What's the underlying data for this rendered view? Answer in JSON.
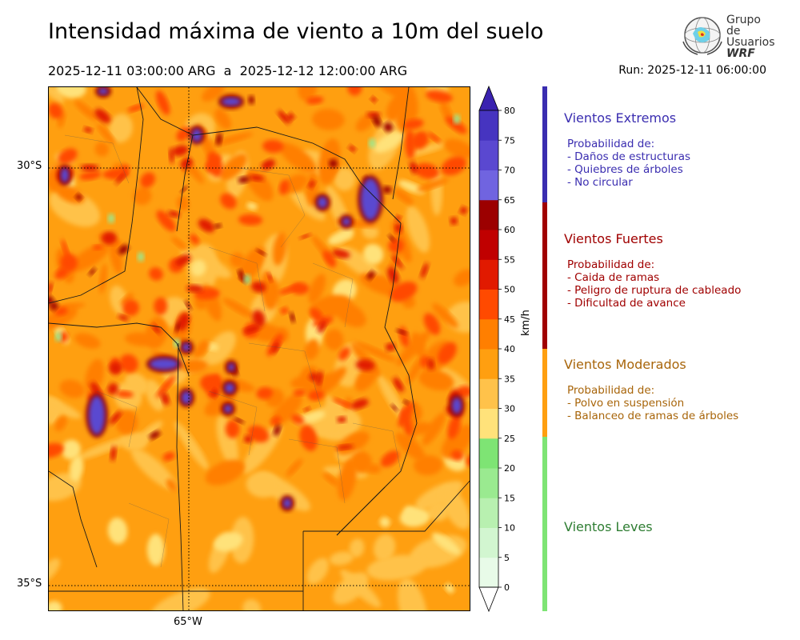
{
  "header": {
    "title": "Intensidad máxima de viento a 10m del suelo",
    "period": "2025-12-11 03:00:00 ARG  a  2025-12-12 12:00:00 ARG",
    "run": "Run: 2025-12-11 06:00:00"
  },
  "logo": {
    "line1": "Grupo de",
    "line2": "Usuarios",
    "line3": "WRF"
  },
  "map": {
    "lat_labels": [
      "30°S",
      "35°S"
    ],
    "lon_labels": [
      "65°W"
    ]
  },
  "colorbar": {
    "unit": "km/h",
    "ticks": [
      "0",
      "5",
      "10",
      "15",
      "20",
      "25",
      "30",
      "35",
      "40",
      "45",
      "50",
      "55",
      "60",
      "65",
      "70",
      "75",
      "80"
    ],
    "colors": [
      "#e8fbe8",
      "#d2f6d0",
      "#b8f0b0",
      "#9aea90",
      "#7ee474",
      "#ffe27a",
      "#ffc24a",
      "#ff9f10",
      "#ff7f00",
      "#ff4a00",
      "#e11a00",
      "#c00000",
      "#9c0000",
      "#7064e0",
      "#5a48d0",
      "#4634c0",
      "#3a22b0"
    ]
  },
  "legend": [
    {
      "title": "Vientos Extremos",
      "color": "#3a2db0",
      "lines": "Probabilidad de:\n- Daños de estructuras\n- Quiebres de árboles\n- No circular"
    },
    {
      "title": "Vientos Fuertes",
      "color": "#a00000",
      "lines": "Probabilidad de:\n- Caida de ramas\n- Peligro de ruptura de cableado\n- Dificultad de avance"
    },
    {
      "title": "Vientos Moderados",
      "color": "#a8650a",
      "lines": "Probabilidad de:\n- Polvo en suspensión\n- Balanceo de ramas de árboles"
    },
    {
      "title": "Vientos Leves",
      "color": "#2e7d32",
      "lines": ""
    }
  ],
  "legend_bar_colors": [
    "#3a2db0",
    "#a00000",
    "#ff9f10",
    "#7ee474"
  ]
}
